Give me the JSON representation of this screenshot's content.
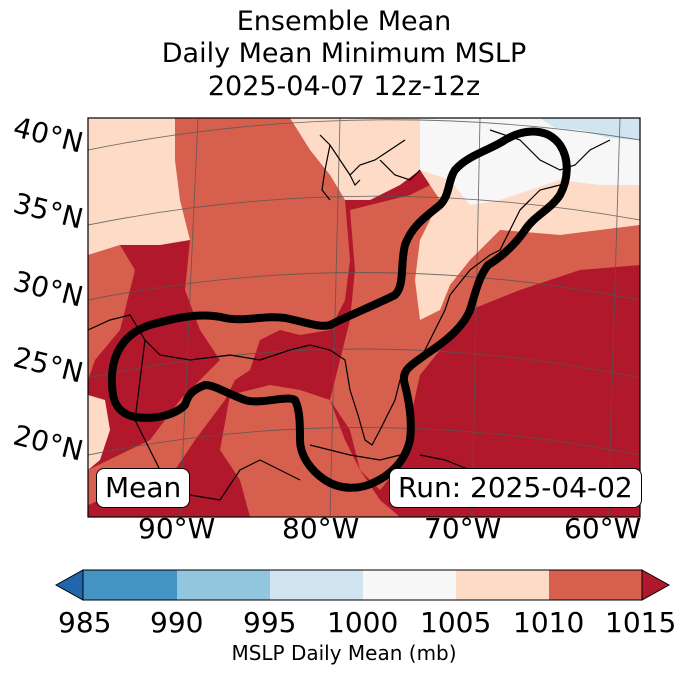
{
  "figure": {
    "title_line1": "Ensemble Mean",
    "title_line2": "Daily Mean Minimum MSLP",
    "title_line3": "2025-04-07 12z-12z",
    "mean_label": "Mean",
    "run_label": "Run: 2025-04-02"
  },
  "map": {
    "lat_labels": [
      "40°N",
      "35°N",
      "30°N",
      "25°N",
      "20°N"
    ],
    "lon_labels": [
      "90°W",
      "80°W",
      "70°W",
      "60°W"
    ],
    "contour_color": "#000000"
  },
  "colorbar": {
    "label": "MSLP Daily Mean (mb)",
    "ticks": [
      "985",
      "990",
      "995",
      "1000",
      "1005",
      "1010",
      "1015"
    ],
    "colors": [
      "#2166ac",
      "#4393c3",
      "#92c5de",
      "#d1e5f0",
      "#f7f7f7",
      "#fddbc7",
      "#d6604d",
      "#b2182b"
    ]
  }
}
